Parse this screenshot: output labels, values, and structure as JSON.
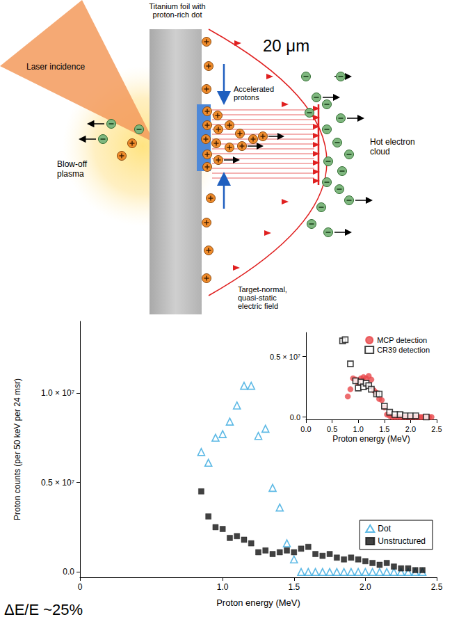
{
  "diagram": {
    "foil_label": "Titanium foil with proton-rich dot",
    "dot_size": "20 μm",
    "laser_label": "Laser incidence",
    "plasma_label": "Blow-off plasma",
    "protons_label": "Accelerated protons",
    "electrons_label": "Hot electron cloud",
    "field_label": "Target-normal, quasi-static electric field"
  },
  "chart_data": [
    {
      "type": "scatter",
      "xlabel": "Proton energy (MeV)",
      "ylabel": "Proton counts (per 50 keV per 24 msr)",
      "xlim": [
        0,
        2.5
      ],
      "xticks": [
        0,
        {
          "value": 1,
          "label": "1.0"
        },
        1.5,
        {
          "value": 2,
          "label": "2.0"
        },
        2.5
      ],
      "ylim": [
        -300000,
        14000000
      ],
      "yticks": [
        {
          "value": 0,
          "label": "0.0"
        },
        {
          "value": 5000000,
          "label": "0.5 × 10⁷"
        },
        {
          "value": 10000000,
          "label": "1.0 × 10⁷"
        }
      ],
      "legend": "lower right",
      "series": [
        {
          "name": "Dot",
          "color": "#35a7de",
          "marker": "open triangle",
          "x": [
            0.85,
            0.9,
            0.95,
            1.0,
            1.05,
            1.1,
            1.15,
            1.2,
            1.25,
            1.3,
            1.35,
            1.4,
            1.45,
            1.5,
            1.55,
            1.6,
            1.65,
            1.7,
            1.75,
            1.8,
            1.85,
            1.9,
            1.95,
            2.0,
            2.05,
            2.1,
            2.15,
            2.2,
            2.25,
            2.3,
            2.35,
            2.4
          ],
          "values": [
            6700000,
            6100000,
            7500000,
            7700000,
            8400000,
            9300000,
            10400000,
            10400000,
            7600000,
            8000000,
            4700000,
            3600000,
            1600000,
            700000,
            0,
            0,
            0,
            0,
            0,
            0,
            0,
            0,
            0,
            0,
            0,
            0,
            0,
            0,
            0,
            0,
            0,
            0
          ]
        },
        {
          "name": "Unstructured",
          "color": "#111111",
          "marker": "square",
          "x": [
            0.85,
            0.9,
            0.95,
            1.0,
            1.05,
            1.1,
            1.15,
            1.2,
            1.25,
            1.3,
            1.35,
            1.4,
            1.45,
            1.5,
            1.55,
            1.6,
            1.65,
            1.7,
            1.75,
            1.8,
            1.85,
            1.9,
            1.95,
            2.0,
            2.05,
            2.1,
            2.15,
            2.2,
            2.25,
            2.3,
            2.35,
            2.4
          ],
          "values": [
            4500000,
            3100000,
            2500000,
            2400000,
            1900000,
            2000000,
            1800000,
            1600000,
            1100000,
            1200000,
            1000000,
            1100000,
            1200000,
            1100000,
            1300000,
            1400000,
            1000000,
            900000,
            1000000,
            800000,
            700000,
            800000,
            700000,
            600000,
            500000,
            400000,
            500000,
            300000,
            200000,
            200000,
            100000,
            100000
          ]
        }
      ]
    },
    {
      "type": "scatter",
      "xlabel": "Proton energy (MeV)",
      "xlim": [
        0,
        2.5
      ],
      "xticks": [
        {
          "value": 0,
          "label": "0.0"
        },
        0.5,
        {
          "value": 1,
          "label": "1.0"
        },
        1.5,
        {
          "value": 2,
          "label": "2.0"
        },
        2.5
      ],
      "ylim": [
        -200000,
        7000000
      ],
      "yticks": [
        {
          "value": 0,
          "label": "0.0"
        },
        {
          "value": 5000000,
          "label": "0.5 × 10⁷"
        }
      ],
      "legend": "upper right",
      "series": [
        {
          "name": "MCP detection",
          "color": "#e8474a",
          "marker": "circle",
          "x": [
            0.8,
            0.85,
            0.9,
            0.95,
            1.0,
            1.05,
            1.1,
            1.15,
            1.2,
            1.25,
            1.3,
            1.35,
            1.4,
            1.45,
            1.5,
            1.55,
            1.6,
            1.65,
            1.7,
            1.75,
            1.8,
            1.85,
            1.9,
            1.95,
            2.0,
            2.05,
            2.1,
            2.15,
            2.2,
            2.25,
            2.3,
            2.35,
            2.4
          ],
          "values": [
            1700000,
            2300000,
            3200000,
            3100000,
            2800000,
            3200000,
            3300000,
            3200000,
            3400000,
            3100000,
            2200000,
            2000000,
            1500000,
            1400000,
            800000,
            200000,
            100000,
            0,
            0,
            0,
            0,
            0,
            0,
            0,
            0,
            0,
            0,
            0,
            0,
            0,
            0,
            0,
            0
          ]
        },
        {
          "name": "CR39 detection",
          "color": "#111111",
          "marker": "open square",
          "x": [
            0.7,
            0.75,
            0.85,
            0.95,
            1.0,
            1.05,
            1.1,
            1.15,
            1.2,
            1.25,
            1.35,
            1.4,
            1.5,
            1.6,
            1.7,
            1.8,
            1.9,
            2.0,
            2.1,
            2.3
          ],
          "values": [
            6300000,
            6400000,
            4400000,
            3000000,
            2400000,
            2900000,
            2500000,
            2800000,
            2600000,
            2300000,
            1900000,
            1900000,
            900000,
            400000,
            200000,
            200000,
            100000,
            100000,
            100000,
            0
          ]
        }
      ]
    }
  ],
  "caption": "ΔE/E ~25%"
}
